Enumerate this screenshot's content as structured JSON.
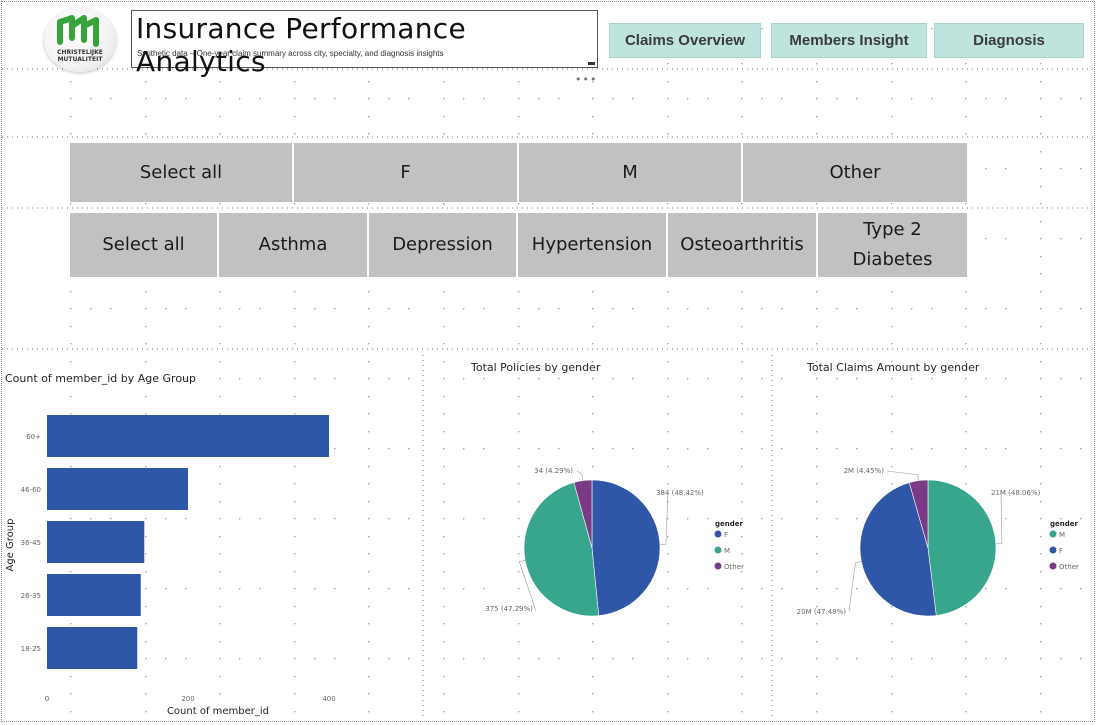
{
  "header": {
    "title": "Insurance Performance Analytics",
    "subtitle": "Synthetic data – One-year claim summary across city, specialty, and diagnosis insights",
    "logo_text_line1": "CHRISTELIJKE",
    "logo_text_line2": "MUTUALITEIT",
    "more_options": "•••"
  },
  "nav": {
    "buttons": [
      {
        "label": "Claims Overview"
      },
      {
        "label": "Members Insight"
      },
      {
        "label": "Diagnosis"
      }
    ]
  },
  "slicers": {
    "gender": [
      "Select all",
      "F",
      "M",
      "Other"
    ],
    "diagnosis": [
      "Select all",
      "Asthma",
      "Depression",
      "Hypertension",
      "Osteoarthritis",
      "Type 2 Diabetes"
    ]
  },
  "colors": {
    "bar": "#3056a8",
    "F": "#3056a8",
    "M": "#37a68c",
    "Other": "#7b3a85",
    "nav_bg": "#bfe4dd",
    "slicer_bg": "#c1c1c1",
    "logo_green": "#36a33b"
  },
  "chart_data": [
    {
      "type": "bar",
      "orientation": "horizontal",
      "title": "Count of member_id by Age Group",
      "xlabel": "Count of member_id",
      "ylabel": "Age Group",
      "categories": [
        "60+",
        "46-60",
        "36-45",
        "26-35",
        "18-25"
      ],
      "values": [
        400,
        200,
        138,
        133,
        128
      ],
      "xlim": [
        0,
        400
      ],
      "xticks": [
        "0",
        "200",
        "400"
      ],
      "grid": false
    },
    {
      "type": "pie",
      "title": "Total Policies by gender",
      "legend_title": "gender",
      "legend_position": "right",
      "slices": [
        {
          "name": "F",
          "value": 384,
          "label": "384 (48.42%)"
        },
        {
          "name": "M",
          "value": 375,
          "label": "375 (47.29%)"
        },
        {
          "name": "Other",
          "value": 34,
          "label": "34 (4.29%)"
        }
      ],
      "legend_order": [
        "F",
        "M",
        "Other"
      ]
    },
    {
      "type": "pie",
      "title": "Total Claims Amount by gender",
      "legend_title": "gender",
      "legend_position": "right",
      "slices": [
        {
          "name": "M",
          "value": 48.06,
          "label": "21M (48.06%)"
        },
        {
          "name": "F",
          "value": 47.48,
          "label": "20M (47.48%)"
        },
        {
          "name": "Other",
          "value": 4.45,
          "label": "2M (4.45%)"
        }
      ],
      "legend_order": [
        "M",
        "F",
        "Other"
      ]
    }
  ]
}
